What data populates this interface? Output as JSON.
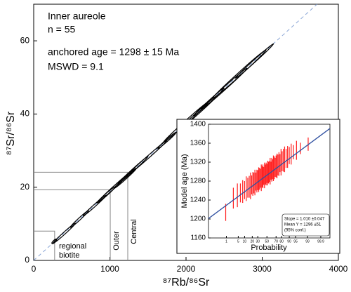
{
  "chart_data": [
    {
      "type": "isochron",
      "xlabel": "⁸⁷Rb/⁸⁶Sr",
      "ylabel": "⁸⁷Sr/⁸⁶Sr",
      "xlim": [
        0,
        4000
      ],
      "ylim": [
        0,
        70
      ],
      "xticks": [
        0,
        1000,
        2000,
        3000,
        4000
      ],
      "yticks": [
        0,
        20,
        40,
        60
      ],
      "annotations": [
        "Inner aureole",
        "n = 55",
        "anchored age = 1298 ± 15 Ma",
        "MSWD = 9.1"
      ],
      "isochron": {
        "x": [
          0,
          3720
        ],
        "y": [
          0,
          70
        ],
        "color": "#8aa6d6"
      },
      "ellipses": {
        "x": [
          270,
          400,
          600,
          800,
          950,
          1050,
          1200,
          1300,
          1500,
          1750,
          2000,
          2150,
          2300,
          2500,
          2700,
          2900
        ],
        "y": [
          5.2,
          7.4,
          11.3,
          15.0,
          17.9,
          19.9,
          22.4,
          24.6,
          28.2,
          32.8,
          37.8,
          40.2,
          43.3,
          46.9,
          50.9,
          54.5
        ],
        "sx": [
          30,
          150,
          120,
          150,
          120,
          200,
          150,
          200,
          250,
          120,
          300,
          250,
          200,
          300,
          350,
          250
        ],
        "sy": [
          0.6,
          2.8,
          2.3,
          2.8,
          2.2,
          3.8,
          2.8,
          3.8,
          4.6,
          2.2,
          5.6,
          4.7,
          3.8,
          5.6,
          6.6,
          4.7
        ]
      },
      "reference_lines": [
        {
          "label": "regional biotite",
          "x": 275,
          "y": 8.0
        },
        {
          "label": "Outer",
          "x": 1005,
          "y": 19.3
        },
        {
          "label": "Central",
          "x": 1235,
          "y": 24.1
        }
      ]
    },
    {
      "type": "probability",
      "xlabel": "Probability",
      "ylabel": "Model age (Ma)",
      "xlim": [
        0.04,
        99.985
      ],
      "ylim": [
        1160,
        1400
      ],
      "xticks": [
        1,
        5,
        10,
        20,
        30,
        50,
        70,
        80,
        90,
        95,
        99,
        99.9
      ],
      "yticks": [
        1160,
        1200,
        1240,
        1280,
        1320,
        1360,
        1400
      ],
      "color": "#ff2020",
      "x": [
        0.9,
        2.7,
        4.5,
        6.4,
        8.2,
        10.0,
        11.8,
        13.6,
        15.5,
        17.3,
        19.1,
        20.9,
        22.7,
        24.5,
        26.4,
        28.2,
        30.0,
        31.8,
        33.6,
        35.5,
        37.3,
        39.1,
        40.9,
        42.7,
        44.5,
        46.4,
        48.2,
        50.0,
        51.8,
        53.6,
        55.5,
        57.3,
        59.1,
        60.9,
        62.7,
        64.5,
        66.4,
        68.2,
        70.0,
        71.8,
        73.6,
        75.5,
        77.3,
        79.1,
        80.9,
        82.7,
        84.5,
        86.4,
        88.2,
        90.0,
        91.8,
        93.6,
        95.5,
        97.3,
        99.1
      ],
      "values": [
        1214,
        1244,
        1250,
        1255,
        1258,
        1261,
        1264,
        1266,
        1268,
        1270,
        1272,
        1274,
        1276,
        1277,
        1279,
        1280,
        1282,
        1283,
        1285,
        1286,
        1287,
        1289,
        1290,
        1291,
        1292,
        1294,
        1295,
        1296,
        1297,
        1298,
        1300,
        1301,
        1302,
        1304,
        1305,
        1307,
        1308,
        1309,
        1311,
        1312,
        1314,
        1316,
        1318,
        1320,
        1322,
        1324,
        1326,
        1328,
        1331,
        1334,
        1337,
        1341,
        1345,
        1349,
        1358
      ],
      "errors": [
        18,
        22,
        25,
        20,
        24,
        19,
        26,
        21,
        23,
        28,
        20,
        25,
        22,
        27,
        19,
        24,
        21,
        26,
        23,
        20,
        28,
        22,
        25,
        19,
        27,
        21,
        24,
        20,
        26,
        23,
        22,
        28,
        19,
        25,
        21,
        27,
        24,
        20,
        23,
        26,
        22,
        25,
        19,
        28,
        21,
        24,
        27,
        20,
        23,
        18,
        22,
        15,
        20,
        12,
        14
      ],
      "fit_line": {
        "x": [
          0.04,
          99.985
        ],
        "y": [
          1201,
          1391
        ],
        "color": "#3050a0"
      },
      "stats": [
        "Slope = 1.010 ±0.047",
        "Mean Y = 1296 ±51",
        "(95% conf.)"
      ]
    }
  ]
}
